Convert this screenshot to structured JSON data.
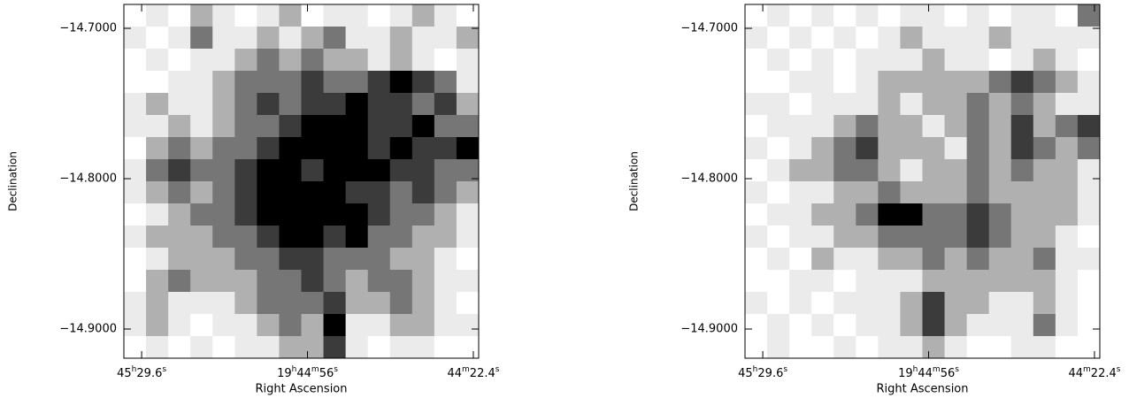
{
  "chart_data": [
    {
      "type": "heatmap",
      "xlabel": "Right Ascension",
      "ylabel": "Declination",
      "xlim": [
        296.3883,
        296.0888
      ],
      "ylim": [
        -14.9194,
        -14.6841
      ],
      "zlim": [
        0,
        5
      ],
      "xticks": [
        {
          "value": 296.3733,
          "label": "45h29.6s"
        },
        {
          "value": 296.2333,
          "label": "19h44m56s"
        },
        {
          "value": 296.0933,
          "label": "44m22.4s"
        }
      ],
      "yticks": [
        {
          "value": -14.7,
          "label": "−14.7000"
        },
        {
          "value": -14.8,
          "label": "−14.8000"
        },
        {
          "value": -14.9,
          "label": "−14.9000"
        }
      ],
      "z": [
        [
          0,
          1,
          0,
          2,
          1,
          0,
          1,
          2,
          0,
          1,
          1,
          0,
          1,
          2,
          1,
          0
        ],
        [
          1,
          0,
          1,
          3,
          1,
          1,
          2,
          1,
          2,
          3,
          1,
          1,
          2,
          1,
          1,
          2
        ],
        [
          0,
          1,
          0,
          1,
          1,
          2,
          3,
          2,
          3,
          2,
          2,
          1,
          2,
          1,
          0,
          1
        ],
        [
          0,
          0,
          1,
          1,
          2,
          3,
          3,
          3,
          4,
          3,
          3,
          4,
          5,
          4,
          3,
          1
        ],
        [
          1,
          2,
          1,
          1,
          2,
          3,
          4,
          3,
          4,
          4,
          5,
          4,
          4,
          3,
          4,
          2
        ],
        [
          1,
          1,
          2,
          1,
          2,
          3,
          3,
          4,
          5,
          5,
          5,
          4,
          4,
          5,
          3,
          3
        ],
        [
          0,
          2,
          3,
          2,
          3,
          3,
          4,
          5,
          5,
          5,
          5,
          4,
          5,
          4,
          4,
          5
        ],
        [
          1,
          3,
          4,
          3,
          3,
          4,
          5,
          5,
          4,
          5,
          5,
          5,
          4,
          4,
          3,
          3
        ],
        [
          1,
          2,
          3,
          2,
          3,
          4,
          5,
          5,
          5,
          5,
          4,
          4,
          3,
          4,
          3,
          2
        ],
        [
          0,
          1,
          2,
          3,
          3,
          4,
          5,
          5,
          5,
          5,
          5,
          4,
          3,
          3,
          2,
          1
        ],
        [
          1,
          2,
          2,
          2,
          3,
          3,
          4,
          5,
          5,
          4,
          5,
          3,
          3,
          2,
          2,
          1
        ],
        [
          0,
          1,
          2,
          2,
          2,
          3,
          3,
          4,
          4,
          3,
          3,
          3,
          2,
          2,
          1,
          0
        ],
        [
          0,
          2,
          3,
          2,
          2,
          2,
          3,
          3,
          4,
          3,
          2,
          3,
          3,
          2,
          1,
          1
        ],
        [
          1,
          2,
          1,
          1,
          1,
          2,
          3,
          3,
          3,
          4,
          2,
          2,
          3,
          2,
          1,
          0
        ],
        [
          1,
          2,
          1,
          0,
          1,
          1,
          2,
          3,
          2,
          5,
          1,
          1,
          2,
          2,
          1,
          1
        ],
        [
          0,
          1,
          0,
          1,
          0,
          1,
          1,
          2,
          2,
          4,
          1,
          0,
          1,
          1,
          0,
          0
        ]
      ]
    },
    {
      "type": "heatmap",
      "xlabel": "Right Ascension",
      "ylabel": "Declination",
      "xlim": [
        296.3883,
        296.0888
      ],
      "ylim": [
        -14.9194,
        -14.6841
      ],
      "zlim": [
        0,
        5
      ],
      "xticks": [
        {
          "value": 296.3733,
          "label": "45h29.6s"
        },
        {
          "value": 296.2333,
          "label": "19h44m56s"
        },
        {
          "value": 296.0933,
          "label": "44m22.4s"
        }
      ],
      "yticks": [
        {
          "value": -14.7,
          "label": "−14.7000"
        },
        {
          "value": -14.8,
          "label": "−14.8000"
        },
        {
          "value": -14.9,
          "label": "−14.9000"
        }
      ],
      "z": [
        [
          0,
          1,
          0,
          1,
          0,
          1,
          0,
          1,
          1,
          0,
          1,
          0,
          1,
          1,
          0,
          3
        ],
        [
          1,
          0,
          1,
          0,
          1,
          0,
          1,
          2,
          1,
          1,
          1,
          2,
          1,
          1,
          1,
          1
        ],
        [
          0,
          1,
          0,
          1,
          0,
          1,
          1,
          1,
          2,
          1,
          1,
          0,
          1,
          2,
          1,
          0
        ],
        [
          0,
          0,
          1,
          1,
          0,
          1,
          2,
          2,
          2,
          2,
          2,
          3,
          4,
          3,
          2,
          1
        ],
        [
          1,
          1,
          0,
          1,
          1,
          1,
          2,
          1,
          2,
          2,
          3,
          2,
          3,
          2,
          1,
          1
        ],
        [
          0,
          1,
          1,
          1,
          2,
          3,
          2,
          2,
          1,
          2,
          3,
          2,
          4,
          2,
          3,
          4
        ],
        [
          1,
          0,
          1,
          2,
          3,
          4,
          2,
          2,
          2,
          1,
          3,
          2,
          4,
          3,
          2,
          3
        ],
        [
          0,
          1,
          2,
          2,
          3,
          3,
          2,
          1,
          2,
          2,
          3,
          2,
          3,
          2,
          2,
          1
        ],
        [
          1,
          0,
          1,
          1,
          2,
          2,
          3,
          2,
          2,
          2,
          3,
          2,
          2,
          2,
          2,
          1
        ],
        [
          0,
          1,
          1,
          2,
          2,
          3,
          5,
          5,
          3,
          3,
          4,
          3,
          2,
          2,
          2,
          1
        ],
        [
          1,
          0,
          1,
          1,
          2,
          2,
          3,
          3,
          3,
          3,
          4,
          3,
          2,
          2,
          1,
          0
        ],
        [
          0,
          1,
          0,
          2,
          1,
          1,
          2,
          2,
          3,
          2,
          3,
          2,
          2,
          3,
          1,
          1
        ],
        [
          0,
          0,
          1,
          1,
          0,
          1,
          1,
          1,
          2,
          2,
          2,
          2,
          2,
          2,
          1,
          0
        ],
        [
          1,
          0,
          1,
          0,
          1,
          1,
          1,
          2,
          4,
          2,
          2,
          1,
          1,
          2,
          1,
          0
        ],
        [
          0,
          1,
          0,
          1,
          0,
          1,
          1,
          2,
          4,
          2,
          1,
          1,
          1,
          3,
          1,
          0
        ],
        [
          0,
          1,
          0,
          0,
          1,
          0,
          1,
          1,
          2,
          1,
          0,
          0,
          1,
          1,
          0,
          0
        ]
      ]
    }
  ]
}
